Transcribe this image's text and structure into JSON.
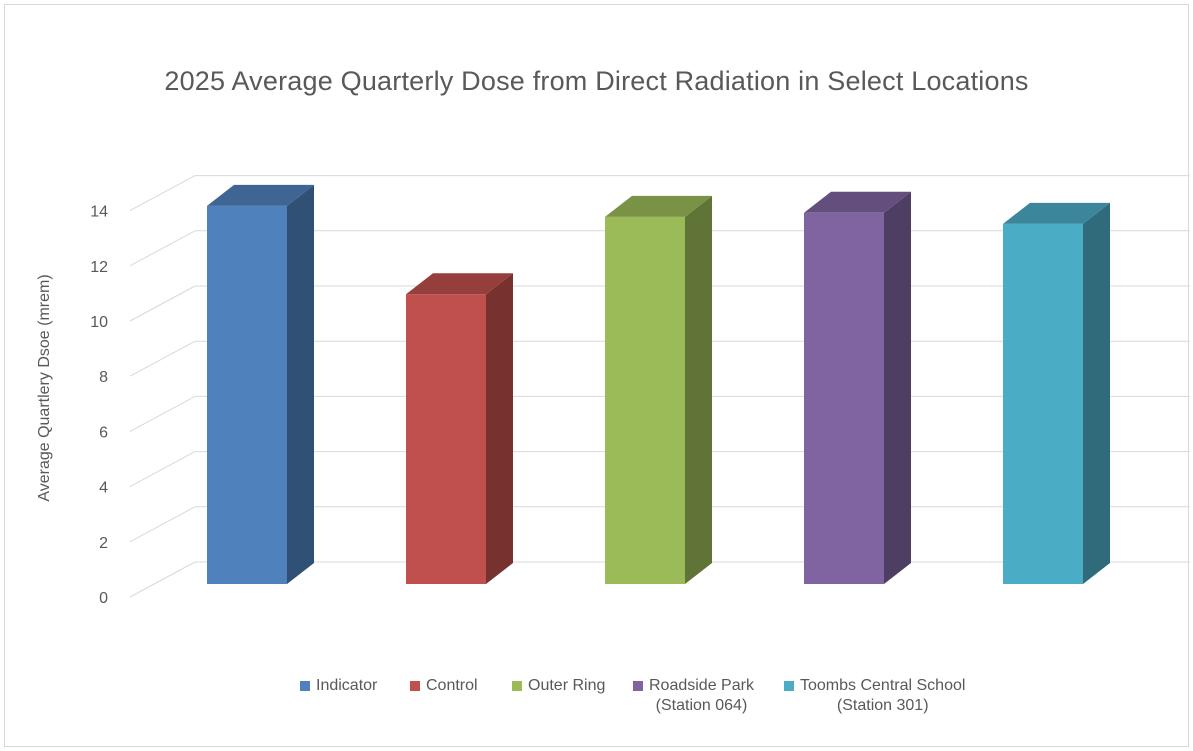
{
  "chart_data": {
    "type": "bar",
    "title": "2025 Average Quarterly Dose from Direct Radiation in Select Locations",
    "ylabel": "Average Quartlery Dsoe (mrem)",
    "xlabel": "",
    "ylim": [
      0,
      14
    ],
    "yticks": [
      0,
      2,
      4,
      6,
      8,
      10,
      12,
      14
    ],
    "ytick_labels": [
      "0",
      "2",
      "4",
      "6",
      "8",
      "10",
      "12",
      "14"
    ],
    "grid": true,
    "legend_position": "bottom",
    "series": [
      {
        "name": "Indicator",
        "lines": [
          "Indicator"
        ],
        "value": 13.7,
        "color": "#4f81bd"
      },
      {
        "name": "Control",
        "lines": [
          "Control"
        ],
        "value": 10.5,
        "color": "#c0504d"
      },
      {
        "name": "Outer Ring",
        "lines": [
          "Outer Ring"
        ],
        "value": 13.3,
        "color": "#9bbb59"
      },
      {
        "name": "Roadside Park (Station 064)",
        "lines": [
          "Roadside Park",
          "(Station 064)"
        ],
        "value": 13.45,
        "color": "#8064a2"
      },
      {
        "name": "Toombs Central School (Station 301)",
        "lines": [
          "Toombs Central School",
          "(Station 301)"
        ],
        "value": 13.05,
        "color": "#4bacc6"
      }
    ]
  }
}
